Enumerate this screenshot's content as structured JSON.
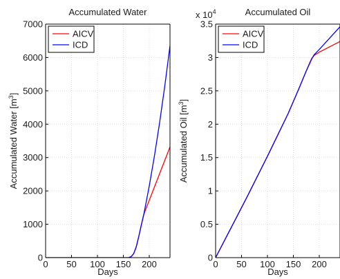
{
  "chart_data": [
    {
      "type": "line",
      "title": "Accumulated Water",
      "xlabel": "Days",
      "ylabel_main": "Accumulated Water [m",
      "ylabel_sup": "3",
      "ylabel_end": "]",
      "xlim": [
        0,
        240
      ],
      "ylim": [
        0,
        7000
      ],
      "xticks": [
        0,
        50,
        100,
        150,
        200
      ],
      "yticks": [
        0,
        1000,
        2000,
        3000,
        4000,
        5000,
        6000,
        7000
      ],
      "xtick_labels": [
        "0",
        "50",
        "100",
        "150",
        "200"
      ],
      "ytick_labels": [
        "0",
        "1000",
        "2000",
        "3000",
        "4000",
        "5000",
        "6000",
        "7000"
      ],
      "exponent_label": "",
      "grid": true,
      "legend_position": "top-left",
      "series": [
        {
          "name": "AICV",
          "color": "#ff0000",
          "x": [
            0,
            160,
            165,
            170,
            175,
            180,
            185,
            190,
            200,
            210,
            220,
            230,
            240
          ],
          "y": [
            0,
            0,
            30,
            120,
            330,
            650,
            1000,
            1320,
            1720,
            2120,
            2520,
            2920,
            3320
          ]
        },
        {
          "name": "ICD",
          "color": "#0000ff",
          "x": [
            0,
            160,
            165,
            170,
            175,
            180,
            185,
            190,
            200,
            210,
            220,
            230,
            240
          ],
          "y": [
            0,
            0,
            30,
            120,
            330,
            650,
            1000,
            1340,
            2150,
            3050,
            4050,
            5150,
            6350
          ]
        }
      ]
    },
    {
      "type": "line",
      "title": "Accumulated Oil",
      "xlabel": "Days",
      "ylabel_main": "Accumulated Oil [m",
      "ylabel_sup": "3",
      "ylabel_end": "]",
      "xlim": [
        0,
        240
      ],
      "ylim": [
        0,
        3.5
      ],
      "xticks": [
        0,
        50,
        100,
        150,
        200
      ],
      "yticks": [
        0,
        0.5,
        1,
        1.5,
        2,
        2.5,
        3,
        3.5
      ],
      "xtick_labels": [
        "0",
        "50",
        "100",
        "150",
        "200"
      ],
      "ytick_labels": [
        "0",
        "0.5",
        "1",
        "1.5",
        "2",
        "2.5",
        "3",
        "3.5"
      ],
      "exponent_label": "x 10",
      "exponent_sup": "4",
      "grid": true,
      "legend_position": "top-left",
      "series": [
        {
          "name": "AICV",
          "color": "#ff0000",
          "x": [
            0,
            20,
            40,
            60,
            80,
            100,
            120,
            140,
            160,
            175,
            185,
            190,
            200,
            220,
            240
          ],
          "y": [
            0,
            0.3,
            0.6,
            0.9,
            1.21,
            1.52,
            1.84,
            2.16,
            2.52,
            2.8,
            2.98,
            3.03,
            3.08,
            3.16,
            3.24
          ]
        },
        {
          "name": "ICD",
          "color": "#0000ff",
          "x": [
            0,
            20,
            40,
            60,
            80,
            100,
            120,
            140,
            160,
            175,
            185,
            190,
            200,
            220,
            240
          ],
          "y": [
            0,
            0.3,
            0.6,
            0.9,
            1.21,
            1.52,
            1.84,
            2.16,
            2.52,
            2.8,
            2.97,
            3.04,
            3.12,
            3.29,
            3.46
          ]
        }
      ]
    }
  ]
}
